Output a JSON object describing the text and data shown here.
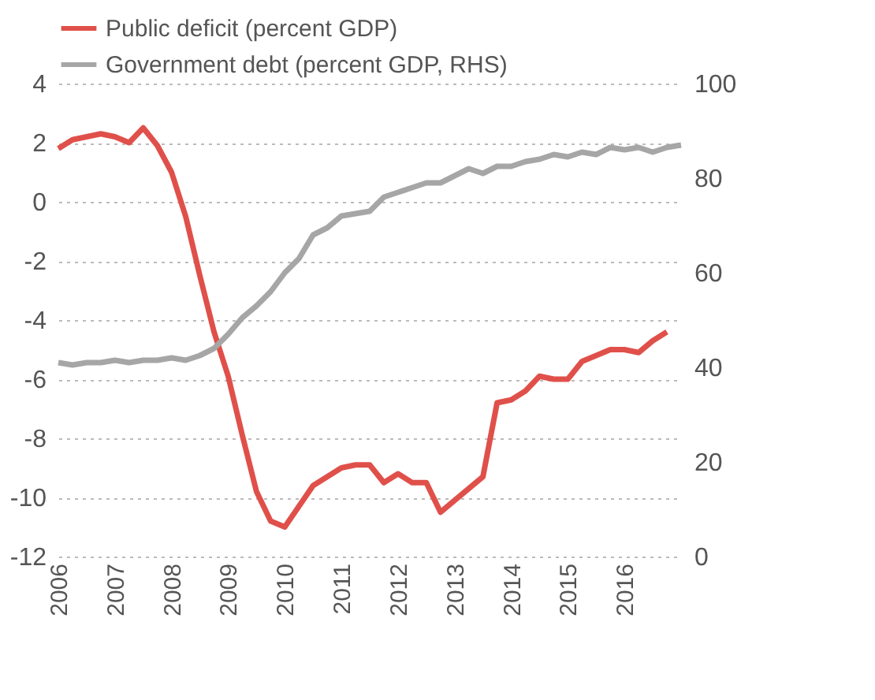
{
  "chart_data": {
    "type": "line",
    "legend": "top left",
    "grid": "y",
    "line_style": "solid",
    "marker": "none",
    "xlim": [
      2006,
      2017
    ],
    "xticks": [
      2006,
      2007,
      2008,
      2009,
      2010,
      2011,
      2012,
      2013,
      2014,
      2015,
      2016
    ],
    "ylim": [
      -12,
      4
    ],
    "yticks": [
      -12,
      -10,
      -8,
      -6,
      -4,
      -2,
      0,
      2,
      4
    ],
    "y2lim": [
      0,
      100
    ],
    "y2ticks": [
      0,
      20,
      40,
      60,
      80,
      100
    ],
    "series": [
      {
        "name": "Public deficit (percent GDP)",
        "color": "#e0504a",
        "axis": "y",
        "x": [
          2006,
          2006.25,
          2006.5,
          2006.75,
          2007,
          2007.25,
          2007.5,
          2007.75,
          2008,
          2008.25,
          2008.5,
          2008.75,
          2009,
          2009.25,
          2009.5,
          2009.75,
          2010,
          2010.25,
          2010.5,
          2010.75,
          2011,
          2011.25,
          2011.5,
          2011.75,
          2012,
          2012.25,
          2012.5,
          2012.75,
          2013,
          2013.25,
          2013.5,
          2013.75,
          2014,
          2014.25,
          2014.5,
          2014.75,
          2015,
          2015.25,
          2015.5,
          2015.75,
          2016,
          2016.25,
          2016.5,
          2016.75
        ],
        "values": [
          1.8,
          2.1,
          2.2,
          2.3,
          2.2,
          2.0,
          2.5,
          1.9,
          1.0,
          -0.5,
          -2.5,
          -4.4,
          -5.9,
          -7.9,
          -9.8,
          -10.8,
          -11.0,
          -10.3,
          -9.6,
          -9.3,
          -9.0,
          -8.9,
          -8.9,
          -9.5,
          -9.2,
          -9.5,
          -9.5,
          -10.5,
          -10.1,
          -9.7,
          -9.3,
          -6.8,
          -6.7,
          -6.4,
          -5.9,
          -6.0,
          -6.0,
          -5.4,
          -5.2,
          -5.0,
          -5.0,
          -5.1,
          -4.7,
          -4.4
        ]
      },
      {
        "name": "Government debt (percent GDP, RHS)",
        "color": "#a6a6a6",
        "axis": "y2",
        "x": [
          2006,
          2006.25,
          2006.5,
          2006.75,
          2007,
          2007.25,
          2007.5,
          2007.75,
          2008,
          2008.25,
          2008.5,
          2008.75,
          2009,
          2009.25,
          2009.5,
          2009.75,
          2010,
          2010.25,
          2010.5,
          2010.75,
          2011,
          2011.25,
          2011.5,
          2011.75,
          2012,
          2012.25,
          2012.5,
          2012.75,
          2013,
          2013.25,
          2013.5,
          2013.75,
          2014,
          2014.25,
          2014.5,
          2014.75,
          2015,
          2015.25,
          2015.5,
          2015.75,
          2016,
          2016.25,
          2016.5,
          2016.75,
          2017
        ],
        "values": [
          41,
          40.5,
          41,
          41,
          41.5,
          41,
          41.5,
          41.5,
          42,
          41.5,
          42.5,
          44,
          47,
          50.5,
          53,
          56,
          60,
          63,
          68,
          69.5,
          72,
          72.5,
          73,
          76,
          77,
          78,
          79,
          79,
          80.5,
          82,
          81,
          82.5,
          82.5,
          83.5,
          84,
          85,
          84.5,
          85.5,
          85,
          86.5,
          86,
          86.5,
          85.5,
          86.5,
          87
        ]
      }
    ]
  }
}
